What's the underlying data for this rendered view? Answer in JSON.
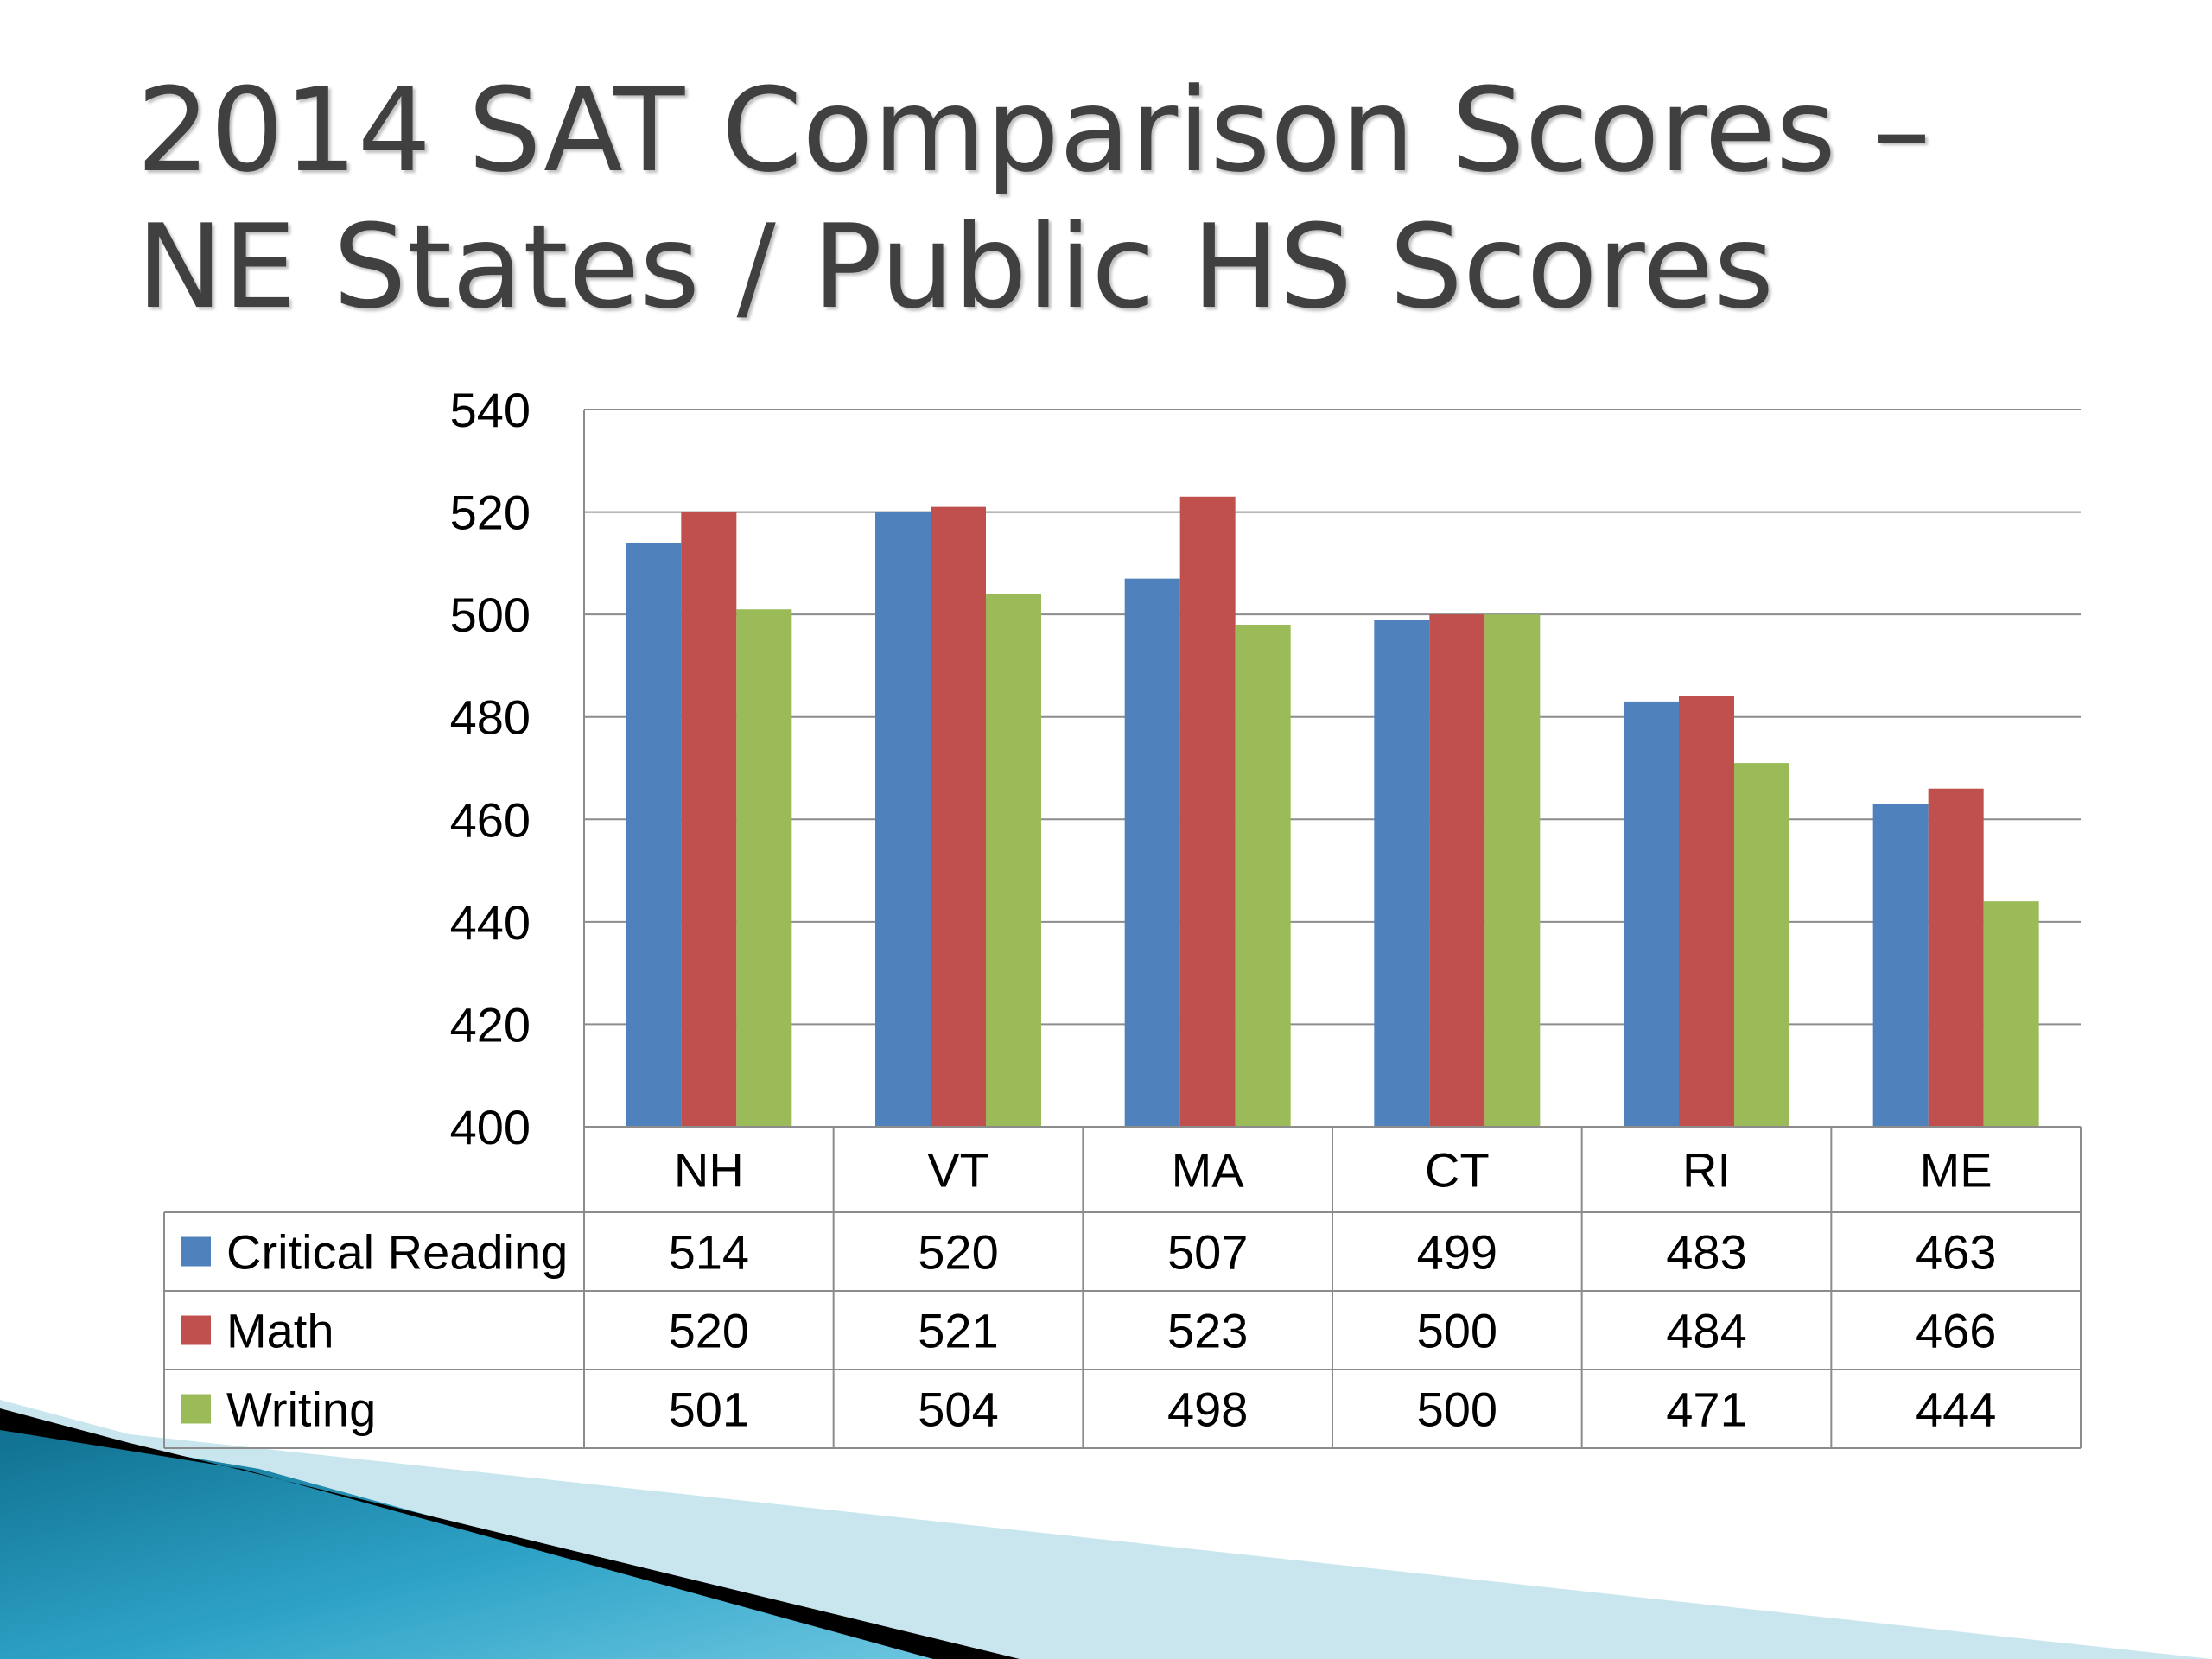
{
  "slide": {
    "title_line1": "2014 SAT Comparison Scores –",
    "title_line2": "NE States / Public HS Scores"
  },
  "chart_data": {
    "type": "bar",
    "title": "",
    "categories": [
      "NH",
      "VT",
      "MA",
      "CT",
      "RI",
      "ME"
    ],
    "series": [
      {
        "name": "Critical Reading",
        "color": "#4f81bd",
        "values": [
          514,
          520,
          507,
          499,
          483,
          463
        ]
      },
      {
        "name": "Math",
        "color": "#c0504d",
        "values": [
          520,
          521,
          523,
          500,
          484,
          466
        ]
      },
      {
        "name": "Writing",
        "color": "#9bbb59",
        "values": [
          501,
          504,
          498,
          500,
          471,
          444
        ]
      }
    ],
    "ylim": [
      400,
      540
    ],
    "yticks": [
      400,
      420,
      440,
      460,
      480,
      500,
      520,
      540
    ],
    "grid": true,
    "legend": "data table below chart"
  },
  "colors": {
    "title_text": "#404040",
    "gridline": "#8c8c8c",
    "accent_dark": "#000000",
    "accent_teal": "#1b8db2",
    "accent_light": "#c9e6ef"
  }
}
